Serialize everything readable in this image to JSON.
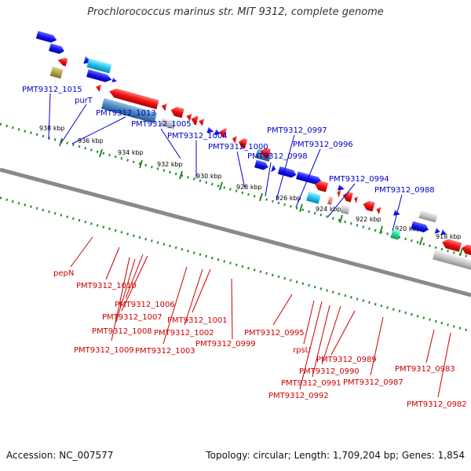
{
  "title": "Prochlorococcus marinus str. MIT 9312, complete genome",
  "footer": {
    "accession": "Accession: NC_007577",
    "summary": "Topology: circular; Length: 1,709,204 bp; Genes: 1,854"
  },
  "colors": {
    "forward_label": "#0000cc",
    "reverse_label": "#cc0000",
    "forward_gene": "#1a1aee",
    "reverse_gene": "#ee1111",
    "backbone": "#8a8a8a",
    "tick": "#2a8a2a"
  },
  "ticks": [
    "938 kbp",
    "936 kbp",
    "934 kbp",
    "932 kbp",
    "930 kbp",
    "928 kbp",
    "926 kbp",
    "924 kbp",
    "922 kbp",
    "920 kbp",
    "918 kbp"
  ],
  "forward_labels": [
    "PMT9312_1015",
    "purT",
    "PMT9312_1013",
    "PMT9312_1005",
    "PMT9312_1004",
    "PMT9312_1000",
    "PMT9312_0998",
    "PMT9312_0997",
    "PMT9312_0996",
    "PMT9312_0994",
    "PMT9312_0988"
  ],
  "reverse_labels": [
    "pepN",
    "PMT9312_1010",
    "PMT9312_1006",
    "PMT9312_1007",
    "PMT9312_1008",
    "PMT9312_1009",
    "PMT9312_1001",
    "PMT9312_1002",
    "PMT9312_1003",
    "PMT9312_0999",
    "PMT9312_0995",
    "rpsU",
    "PMT9312_0989",
    "PMT9312_0990",
    "PMT9312_0991",
    "PMT9312_0992",
    "PMT9312_0987",
    "PMT9312_0983",
    "PMT9312_0982"
  ]
}
